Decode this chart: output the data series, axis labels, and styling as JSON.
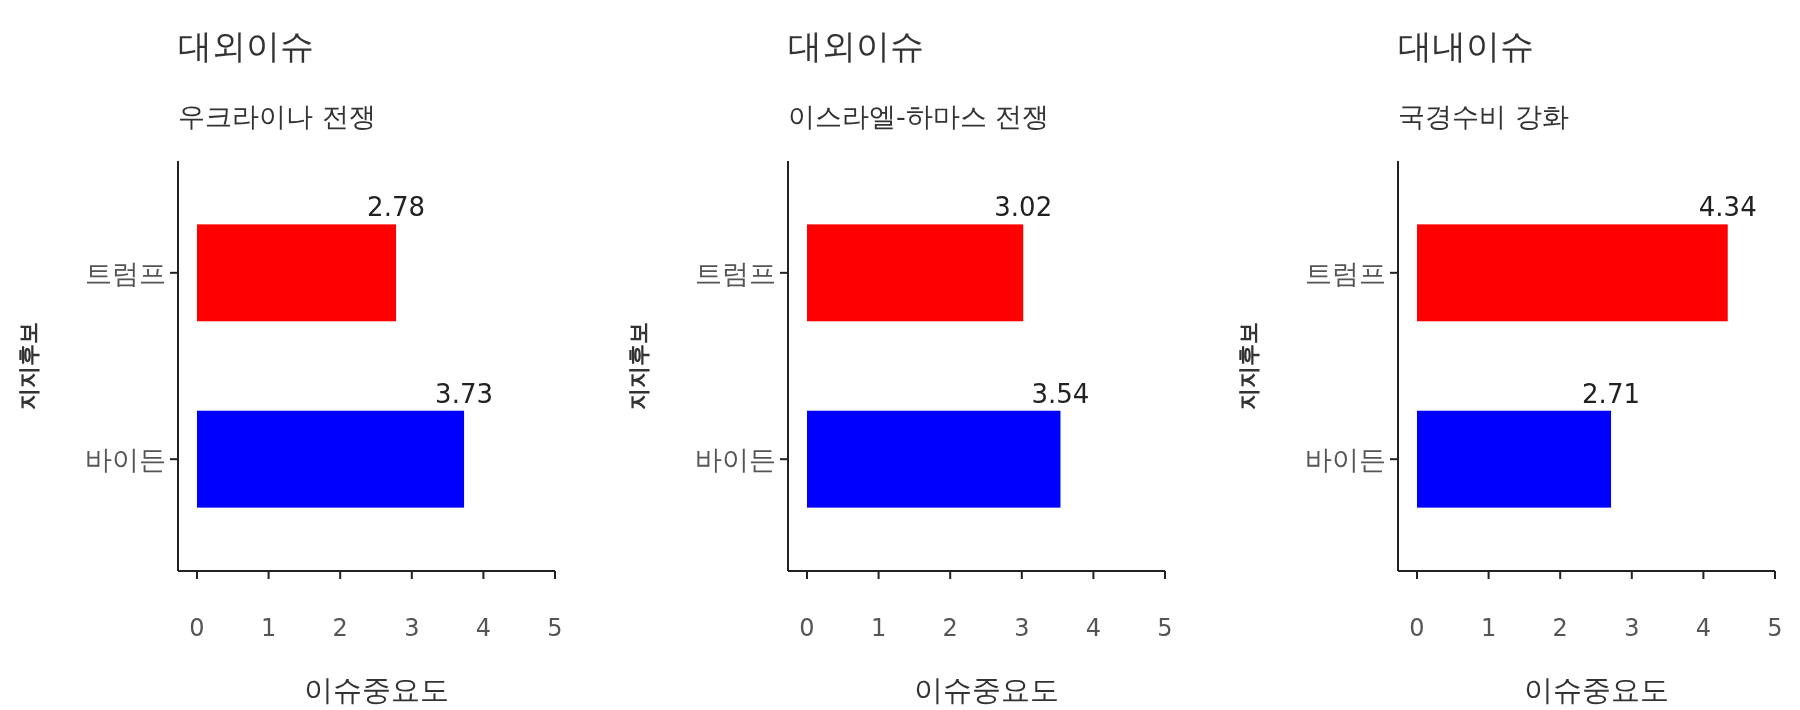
{
  "chart_data": [
    {
      "type": "bar",
      "orientation": "horizontal",
      "title": "대외이슈",
      "subtitle": "우크라이나 전쟁",
      "xlabel": "이슈중요도",
      "ylabel": "지지후보",
      "categories": [
        "트럼프",
        "바이든"
      ],
      "values": [
        2.78,
        3.73
      ],
      "colors": [
        "#ff0000",
        "#0000ff"
      ],
      "xlim": [
        0,
        5
      ],
      "xticks": [
        0,
        1,
        2,
        3,
        4,
        5
      ],
      "data_labels": true
    },
    {
      "type": "bar",
      "orientation": "horizontal",
      "title": "대외이슈",
      "subtitle": "이스라엘-하마스 전쟁",
      "xlabel": "이슈중요도",
      "ylabel": "지지후보",
      "categories": [
        "트럼프",
        "바이든"
      ],
      "values": [
        3.02,
        3.54
      ],
      "colors": [
        "#ff0000",
        "#0000ff"
      ],
      "xlim": [
        0,
        5
      ],
      "xticks": [
        0,
        1,
        2,
        3,
        4,
        5
      ],
      "data_labels": true
    },
    {
      "type": "bar",
      "orientation": "horizontal",
      "title": "대내이슈",
      "subtitle": "국경수비 강화",
      "xlabel": "이슈중요도",
      "ylabel": "지지후보",
      "categories": [
        "트럼프",
        "바이든"
      ],
      "values": [
        4.34,
        2.71
      ],
      "colors": [
        "#ff0000",
        "#0000ff"
      ],
      "xlim": [
        0,
        5
      ],
      "xticks": [
        0,
        1,
        2,
        3,
        4,
        5
      ],
      "data_labels": true
    }
  ]
}
